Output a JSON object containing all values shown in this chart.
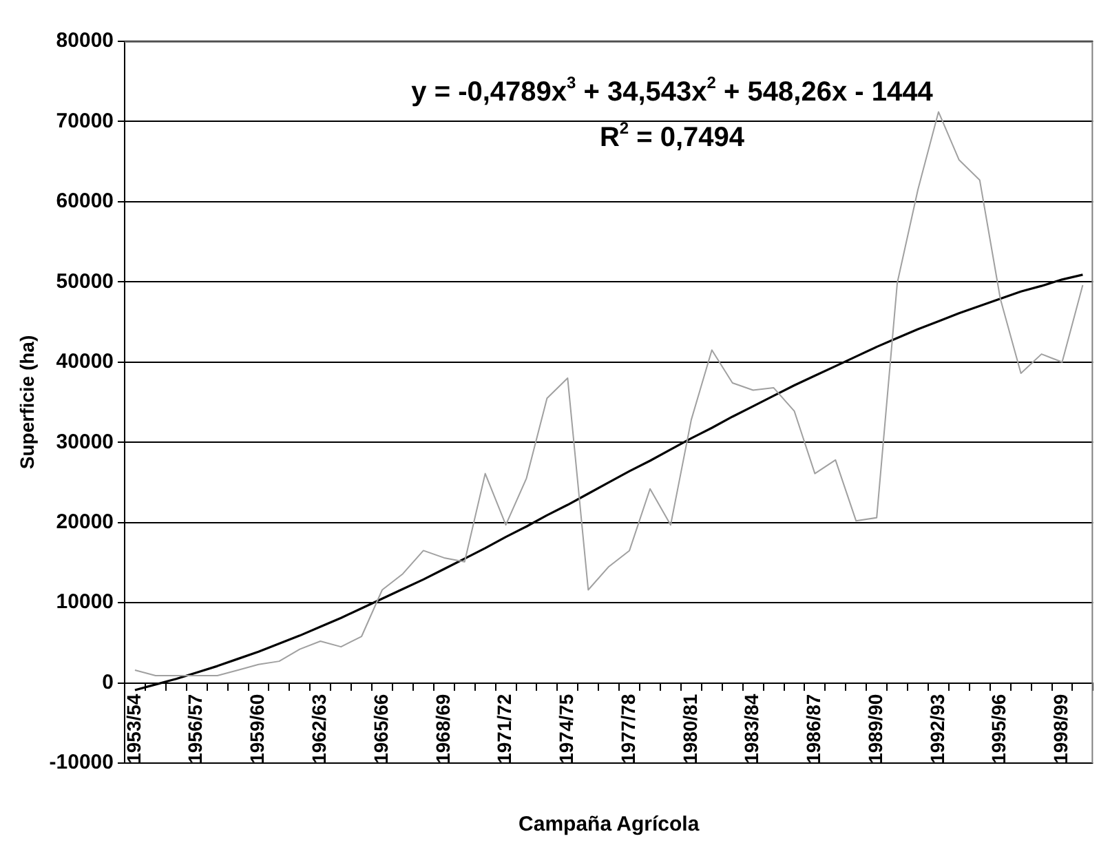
{
  "chart_data": {
    "type": "line",
    "xlabel": "Campaña Agrícola",
    "ylabel": "Superficie (ha)",
    "categories": [
      "1953/54",
      null,
      null,
      "1956/57",
      null,
      null,
      "1959/60",
      null,
      null,
      "1962/63",
      null,
      null,
      "1965/66",
      null,
      null,
      "1968/69",
      null,
      null,
      "1971/72",
      null,
      null,
      "1974/75",
      null,
      null,
      "1977/78",
      null,
      null,
      "1980/81",
      null,
      null,
      "1983/84",
      null,
      null,
      "1986/87",
      null,
      null,
      "1989/90",
      null,
      null,
      "1992/93",
      null,
      null,
      "1995/96",
      null,
      null,
      "1998/99",
      null
    ],
    "series": [
      {
        "color": "#a0a0a0",
        "values": [
          1600,
          900,
          900,
          900,
          900,
          1600,
          2300,
          2700,
          4200,
          5200,
          4500,
          5800,
          11600,
          13600,
          16500,
          15600,
          15100,
          26100,
          19700,
          25500,
          35500,
          38000,
          11600,
          14500,
          16500,
          24200,
          19700,
          32800,
          41500,
          37400,
          36500,
          36800,
          33900,
          26100,
          27800,
          20200,
          20600,
          49900,
          61500,
          71200,
          65200,
          62700,
          47900,
          38600,
          41000,
          40000,
          49600
        ]
      },
      {
        "color": "#000000",
        "values": [
          -900,
          -200,
          500,
          1300,
          2100,
          3000,
          3900,
          4900,
          5900,
          7000,
          8100,
          9300,
          10500,
          11700,
          12900,
          14200,
          15500,
          16800,
          18200,
          19500,
          20900,
          22200,
          23600,
          25000,
          26400,
          27700,
          29100,
          30500,
          31800,
          33200,
          34500,
          35800,
          37100,
          38300,
          39500,
          40700,
          41900,
          43000,
          44100,
          45100,
          46100,
          47000,
          47900,
          48800,
          49500,
          50300,
          50900
        ]
      }
    ],
    "ylim": [
      -10000,
      80000
    ],
    "yticks": [
      -10000,
      0,
      10000,
      20000,
      30000,
      40000,
      50000,
      60000,
      70000,
      80000
    ],
    "grid": "y",
    "legend": false,
    "marker": "none",
    "line_style": "solid",
    "annotations": [
      "y = -0,4789x$^{3}$ + 34,543x$^{2}$ + 548,26x - 1444",
      "R$^{2}$ = 0,7494"
    ]
  }
}
